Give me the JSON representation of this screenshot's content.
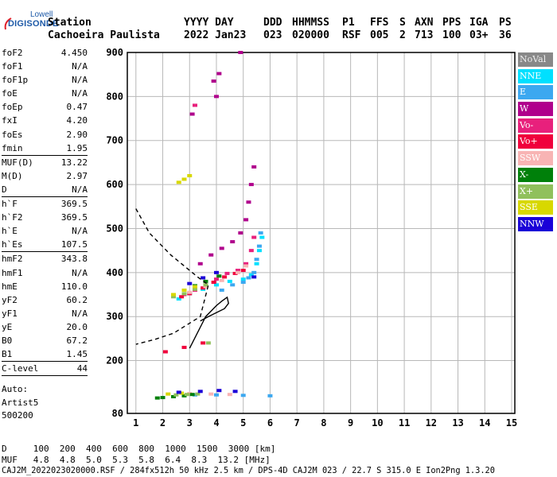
{
  "logo": {
    "line1": "Lowell",
    "line2": "DIGISONDE"
  },
  "header": {
    "row1": [
      {
        "label": "Station"
      },
      {
        "label": "YYYY DAY"
      },
      {
        "label": "DDD"
      },
      {
        "label": "HHMMSS"
      },
      {
        "label": "P1"
      },
      {
        "label": "FFS"
      },
      {
        "label": "S"
      },
      {
        "label": "AXN"
      },
      {
        "label": "PPS"
      },
      {
        "label": "IGA"
      },
      {
        "label": "PS"
      }
    ],
    "row2": [
      {
        "value": "Cachoeira Paulista"
      },
      {
        "value": "2022 Jan23"
      },
      {
        "value": "023"
      },
      {
        "value": "020000"
      },
      {
        "value": "RSF"
      },
      {
        "value": "005"
      },
      {
        "value": "2"
      },
      {
        "value": "713"
      },
      {
        "value": "100"
      },
      {
        "value": "03+"
      },
      {
        "value": "36"
      }
    ]
  },
  "parameters": [
    {
      "group": [
        {
          "name": "foF2",
          "value": "4.450"
        },
        {
          "name": "foF1",
          "value": "N/A"
        },
        {
          "name": "foF1p",
          "value": "N/A"
        },
        {
          "name": "foE",
          "value": "N/A"
        },
        {
          "name": "foEp",
          "value": "0.47"
        },
        {
          "name": "fxI",
          "value": "4.20"
        },
        {
          "name": "foEs",
          "value": "2.90"
        },
        {
          "name": "fmin",
          "value": "1.95"
        }
      ]
    },
    {
      "group": [
        {
          "name": "MUF(D)",
          "value": "13.22"
        },
        {
          "name": "M(D)",
          "value": "2.97"
        },
        {
          "name": "D",
          "value": "N/A"
        }
      ]
    },
    {
      "group": [
        {
          "name": "h`F",
          "value": "369.5"
        },
        {
          "name": "h`F2",
          "value": "369.5"
        },
        {
          "name": "h`E",
          "value": "N/A"
        },
        {
          "name": "h`Es",
          "value": "107.5"
        }
      ]
    },
    {
      "group": [
        {
          "name": "hmF2",
          "value": "343.8"
        },
        {
          "name": "hmF1",
          "value": "N/A"
        },
        {
          "name": "hmE",
          "value": "110.0"
        },
        {
          "name": "yF2",
          "value": "60.2"
        },
        {
          "name": "yF1",
          "value": "N/A"
        },
        {
          "name": "yE",
          "value": "20.0"
        },
        {
          "name": "B0",
          "value": "67.2"
        },
        {
          "name": "B1",
          "value": "1.45"
        }
      ]
    },
    {
      "group": [
        {
          "name": "C-level",
          "value": "44"
        }
      ]
    }
  ],
  "autoscaling": {
    "line1": "Auto:",
    "line2": "Artist5",
    "line3": "500200"
  },
  "legend": [
    {
      "label": "NoVal",
      "color": "#888888"
    },
    {
      "label": "NNE",
      "color": "#00e0ff"
    },
    {
      "label": "E",
      "color": "#3ca8f0"
    },
    {
      "label": "W",
      "color": "#b0008c"
    },
    {
      "label": "Vo-",
      "color": "#e8207c"
    },
    {
      "label": "Vo+",
      "color": "#f0003c"
    },
    {
      "label": "SSW",
      "color": "#f8b4b4"
    },
    {
      "label": "X-",
      "color": "#00800a"
    },
    {
      "label": "X+",
      "color": "#90c05c"
    },
    {
      "label": "SSE",
      "color": "#d8d800"
    },
    {
      "label": "NNW",
      "color": "#1a00d8"
    }
  ],
  "footer": {
    "line1": "D     100  200  400  600  800  1000  1500  3000 [km]",
    "line2": "MUF   4.8  4.8  5.0  5.3  5.8  6.4  8.3  13.2 [MHz]",
    "line3": "CAJ2M_2022023020000.RSF / 284fx512h 50 kHz 2.5 km / DPS-4D CAJ2M 023 / 22.7 S 315.0 E Ion2Png 1.3.20"
  },
  "chart_data": {
    "type": "scatter",
    "xlim": [
      1,
      15
    ],
    "ylim": [
      80,
      900
    ],
    "xticks": [
      "1",
      "2",
      "3",
      "4",
      "5",
      "6",
      "7",
      "8",
      "9",
      "10",
      "11",
      "12",
      "13",
      "14",
      "15"
    ],
    "yticks": [
      "80",
      "200",
      "300",
      "400",
      "500",
      "600",
      "700",
      "800",
      "900"
    ],
    "grid": true,
    "traces": [
      {
        "color": "#00e0ff",
        "points": [
          [
            2.6,
            340
          ],
          [
            3.0,
            352
          ],
          [
            3.5,
            362
          ],
          [
            4.0,
            372
          ],
          [
            4.5,
            380
          ],
          [
            5.0,
            385
          ],
          [
            5.3,
            395
          ],
          [
            5.5,
            420
          ],
          [
            5.6,
            450
          ],
          [
            5.7,
            480
          ]
        ]
      },
      {
        "color": "#3ca8f0",
        "points": [
          [
            4.2,
            360
          ],
          [
            4.6,
            372
          ],
          [
            5.0,
            378
          ],
          [
            5.2,
            388
          ],
          [
            5.4,
            400
          ],
          [
            5.5,
            430
          ],
          [
            5.6,
            460
          ],
          [
            5.65,
            490
          ],
          [
            3.2,
            122
          ],
          [
            4.0,
            122
          ],
          [
            5.0,
            121
          ],
          [
            6.0,
            120
          ]
        ]
      },
      {
        "color": "#b0008c",
        "points": [
          [
            3.4,
            420
          ],
          [
            3.8,
            440
          ],
          [
            4.2,
            455
          ],
          [
            4.6,
            470
          ],
          [
            4.9,
            490
          ],
          [
            5.1,
            520
          ],
          [
            5.2,
            560
          ],
          [
            5.3,
            600
          ],
          [
            5.4,
            640
          ],
          [
            3.9,
            835
          ],
          [
            4.1,
            852
          ],
          [
            4.0,
            800
          ],
          [
            4.9,
            900
          ],
          [
            3.1,
            760
          ]
        ]
      },
      {
        "color": "#e8207c",
        "points": [
          [
            2.8,
            350
          ],
          [
            3.2,
            360
          ],
          [
            3.6,
            372
          ],
          [
            4.0,
            385
          ],
          [
            4.4,
            398
          ],
          [
            4.8,
            405
          ],
          [
            5.1,
            420
          ],
          [
            5.3,
            450
          ],
          [
            5.4,
            480
          ],
          [
            3.2,
            780
          ]
        ]
      },
      {
        "color": "#f0003c",
        "points": [
          [
            2.7,
            345
          ],
          [
            3.0,
            352
          ],
          [
            3.5,
            365
          ],
          [
            3.9,
            378
          ],
          [
            4.3,
            390
          ],
          [
            4.7,
            398
          ],
          [
            5.0,
            405
          ],
          [
            2.1,
            220
          ],
          [
            2.8,
            230
          ],
          [
            3.5,
            240
          ]
        ]
      },
      {
        "color": "#f8b4b4",
        "points": [
          [
            3.0,
            355
          ],
          [
            3.6,
            368
          ],
          [
            4.2,
            382
          ],
          [
            4.8,
            400
          ],
          [
            5.1,
            415
          ],
          [
            3.0,
            125
          ],
          [
            3.8,
            124
          ],
          [
            4.5,
            123
          ]
        ]
      },
      {
        "color": "#00800a",
        "points": [
          [
            1.8,
            115
          ],
          [
            2.0,
            116
          ],
          [
            2.4,
            118
          ],
          [
            2.8,
            120
          ],
          [
            3.1,
            123
          ],
          [
            3.2,
            370
          ],
          [
            3.6,
            380
          ],
          [
            4.1,
            392
          ]
        ]
      },
      {
        "color": "#90c05c",
        "points": [
          [
            2.4,
            345
          ],
          [
            2.8,
            352
          ],
          [
            3.2,
            362
          ],
          [
            3.6,
            372
          ],
          [
            2.5,
            122
          ],
          [
            2.9,
            123
          ],
          [
            3.3,
            124
          ],
          [
            3.7,
            240
          ]
        ]
      },
      {
        "color": "#d8d800",
        "points": [
          [
            2.4,
            350
          ],
          [
            2.8,
            360
          ],
          [
            3.2,
            368
          ],
          [
            2.6,
            605
          ],
          [
            2.8,
            612
          ],
          [
            3.0,
            620
          ],
          [
            2.2,
            124
          ],
          [
            2.7,
            126
          ]
        ]
      },
      {
        "color": "#1a00d8",
        "points": [
          [
            3.0,
            375
          ],
          [
            3.5,
            388
          ],
          [
            4.0,
            400
          ],
          [
            2.6,
            128
          ],
          [
            3.4,
            130
          ],
          [
            4.1,
            132
          ],
          [
            4.7,
            130
          ],
          [
            5.4,
            390
          ]
        ]
      }
    ],
    "profile_solid": [
      [
        3.0,
        228
      ],
      [
        3.6,
        300
      ],
      [
        4.0,
        325
      ],
      [
        4.2,
        335
      ],
      [
        4.4,
        343.8
      ],
      [
        4.45,
        330
      ],
      [
        4.3,
        318
      ],
      [
        3.7,
        300
      ],
      [
        3.4,
        290
      ]
    ],
    "profile_dashed": [
      [
        1.0,
        545
      ],
      [
        1.5,
        490
      ],
      [
        2.3,
        440
      ],
      [
        2.9,
        410
      ],
      [
        3.3,
        390
      ],
      [
        3.7,
        372
      ],
      [
        3.4,
        300
      ],
      [
        2.4,
        262
      ],
      [
        1.7,
        248
      ],
      [
        1.0,
        237
      ]
    ]
  }
}
